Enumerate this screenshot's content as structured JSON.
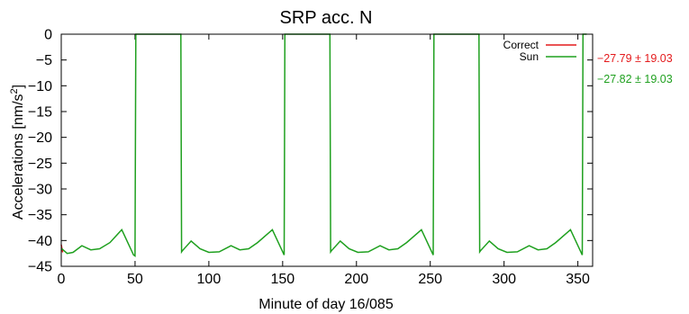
{
  "chart_data": {
    "type": "line",
    "title": "SRP acc. N",
    "xlabel": "Minute of day 16/085",
    "ylabel_main": "Accelerations [nm/s",
    "ylabel_sup": "2",
    "ylabel_tail": "]",
    "xlim": [
      0,
      360
    ],
    "ylim": [
      -45,
      0
    ],
    "xticks": [
      0,
      50,
      100,
      150,
      200,
      250,
      300,
      350
    ],
    "yticks": [
      0,
      -5,
      -10,
      -15,
      -20,
      -25,
      -30,
      -35,
      -40,
      -45
    ],
    "xtick_labels": [
      "0",
      "50",
      "100",
      "150",
      "200",
      "250",
      "300",
      "350"
    ],
    "ytick_labels": [
      "0",
      "−5",
      "−10",
      "−15",
      "−20",
      "−25",
      "−30",
      "−35",
      "−40",
      "−45"
    ],
    "grid": false,
    "legend_position": "top-right",
    "series": [
      {
        "name": "Correct",
        "color": "#e41a1c",
        "stat": "−27.79 ± 19.03",
        "x": [
          0,
          0.5,
          1
        ],
        "y": [
          -40.8,
          -41.6,
          -42.3
        ]
      },
      {
        "name": "Sun",
        "color": "#1fa01f",
        "stat": "−27.82 ± 19.03",
        "x": [
          0,
          4,
          8,
          14,
          20,
          26,
          33,
          41,
          49,
          50,
          50.5,
          81,
          81.5,
          82,
          88,
          94,
          100,
          107,
          115,
          121,
          127,
          133,
          143,
          151,
          151.5,
          182,
          182.5,
          183,
          189,
          195,
          201,
          208,
          216,
          222,
          228,
          234,
          244,
          252,
          252.5,
          283,
          283.5,
          284,
          290,
          296,
          302,
          309,
          317,
          323,
          329,
          335,
          345,
          353,
          353.5,
          356
        ],
        "y": [
          -41.5,
          -42.5,
          -42.3,
          -41,
          -41.8,
          -41.6,
          -40.4,
          -37.9,
          -42.8,
          -43,
          0,
          0,
          -42.2,
          -42,
          -40.1,
          -41.6,
          -42.3,
          -42.2,
          -41,
          -41.8,
          -41.6,
          -40.4,
          -37.9,
          -42.8,
          0,
          0,
          -42.2,
          -42,
          -40.1,
          -41.6,
          -42.3,
          -42.2,
          -41,
          -41.8,
          -41.6,
          -40.4,
          -37.9,
          -42.8,
          0,
          0,
          -42.2,
          -42,
          -40.1,
          -41.6,
          -42.3,
          -42.2,
          -41,
          -41.8,
          -41.6,
          -40.4,
          -37.9,
          -42.8,
          0,
          0
        ]
      }
    ]
  }
}
